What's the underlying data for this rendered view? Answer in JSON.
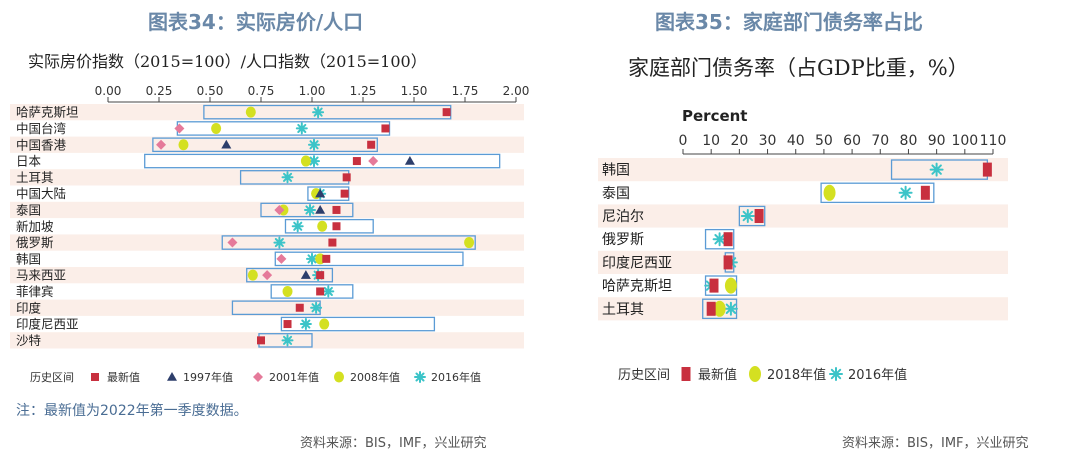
{
  "left": {
    "title": "图表34：实际房价/人口",
    "subtitle": "实际房价指数（2015=100）/人口指数（2015=100）",
    "note": "注：最新值为2022年第一季度数据。",
    "source": "资料来源：BIS，IMF，兴业研究"
  },
  "right": {
    "title": "图表35：家庭部门债务率占比",
    "subtitle": "家庭部门债务率（占GDP比重，%）",
    "source": "资料来源：BIS，IMF，兴业研究"
  },
  "colors": {
    "latest": "#c8303f",
    "y1997": "#2d3e6b",
    "y2001": "#e57a9a",
    "y2008": "#d4e021",
    "y2016": "#3cc4c8",
    "range": "#5b9bd5",
    "stripe": "#fbeee8"
  },
  "chart_data": [
    {
      "type": "range-dot",
      "x_ticks": [
        "0.00",
        "0.25",
        "0.50",
        "0.75",
        "1.00",
        "1.25",
        "1.50",
        "1.75",
        "2.00"
      ],
      "xlim": [
        0,
        2
      ],
      "categories": [
        "哈萨克斯坦",
        "中国台湾",
        "中国香港",
        "日本",
        "土耳其",
        "中国大陆",
        "泰国",
        "新加坡",
        "俄罗斯",
        "韩国",
        "马来西亚",
        "菲律宾",
        "印度",
        "印度尼西亚",
        "沙特"
      ],
      "range": [
        [
          0.47,
          1.68
        ],
        [
          0.34,
          1.38
        ],
        [
          0.22,
          1.32
        ],
        [
          0.18,
          1.92
        ],
        [
          0.65,
          1.18
        ],
        [
          0.98,
          1.18
        ],
        [
          0.75,
          1.2
        ],
        [
          0.87,
          1.3
        ],
        [
          0.56,
          1.8
        ],
        [
          0.82,
          1.74
        ],
        [
          0.68,
          1.1
        ],
        [
          0.8,
          1.2
        ],
        [
          0.61,
          1.04
        ],
        [
          0.85,
          1.6
        ],
        [
          0.74,
          1.0
        ]
      ],
      "latest": [
        1.66,
        1.36,
        1.29,
        1.22,
        1.17,
        1.16,
        1.12,
        1.12,
        1.1,
        1.07,
        1.04,
        1.04,
        0.94,
        0.88,
        0.75
      ],
      "y1997": [
        null,
        null,
        0.58,
        1.48,
        null,
        1.04,
        1.04,
        null,
        null,
        null,
        0.97,
        null,
        null,
        null,
        null
      ],
      "y2001": [
        null,
        0.35,
        0.26,
        1.3,
        null,
        null,
        0.84,
        null,
        0.61,
        0.85,
        0.78,
        null,
        null,
        null,
        null
      ],
      "y2008": [
        0.7,
        0.53,
        0.37,
        0.97,
        null,
        1.02,
        0.86,
        1.05,
        1.77,
        1.04,
        0.71,
        0.88,
        null,
        1.06,
        null
      ],
      "y2016": [
        1.03,
        0.95,
        1.01,
        1.01,
        0.88,
        1.04,
        0.99,
        0.93,
        0.84,
        1.0,
        1.03,
        1.08,
        1.02,
        0.97,
        0.88
      ],
      "legend": {
        "range": "历史区间",
        "latest": "最新值",
        "y1997": "1997年值",
        "y2001": "2001年值",
        "y2008": "2008年值",
        "y2016": "2016年值"
      }
    },
    {
      "type": "range-dot",
      "xlabel": "Percent",
      "x_ticks": [
        "0",
        "10",
        "20",
        "30",
        "40",
        "50",
        "60",
        "70",
        "80",
        "90",
        "100",
        "110"
      ],
      "xlim": [
        0,
        110
      ],
      "categories": [
        "韩国",
        "泰国",
        "尼泊尔",
        "俄罗斯",
        "印度尼西亚",
        "哈萨克斯坦",
        "土耳其"
      ],
      "range": [
        [
          74,
          108
        ],
        [
          49,
          89
        ],
        [
          20,
          29
        ],
        [
          8,
          18
        ],
        [
          15,
          18
        ],
        [
          8,
          19
        ],
        [
          7,
          19
        ]
      ],
      "latest": [
        108,
        86,
        27,
        16,
        16,
        11,
        10
      ],
      "y2018": [
        null,
        52,
        null,
        null,
        null,
        17,
        13
      ],
      "y2016": [
        90,
        79,
        23,
        13,
        17,
        10,
        17
      ],
      "legend": {
        "range": "历史区间",
        "latest": "最新值",
        "y2018": "2018年值",
        "y2016": "2016年值"
      }
    }
  ]
}
